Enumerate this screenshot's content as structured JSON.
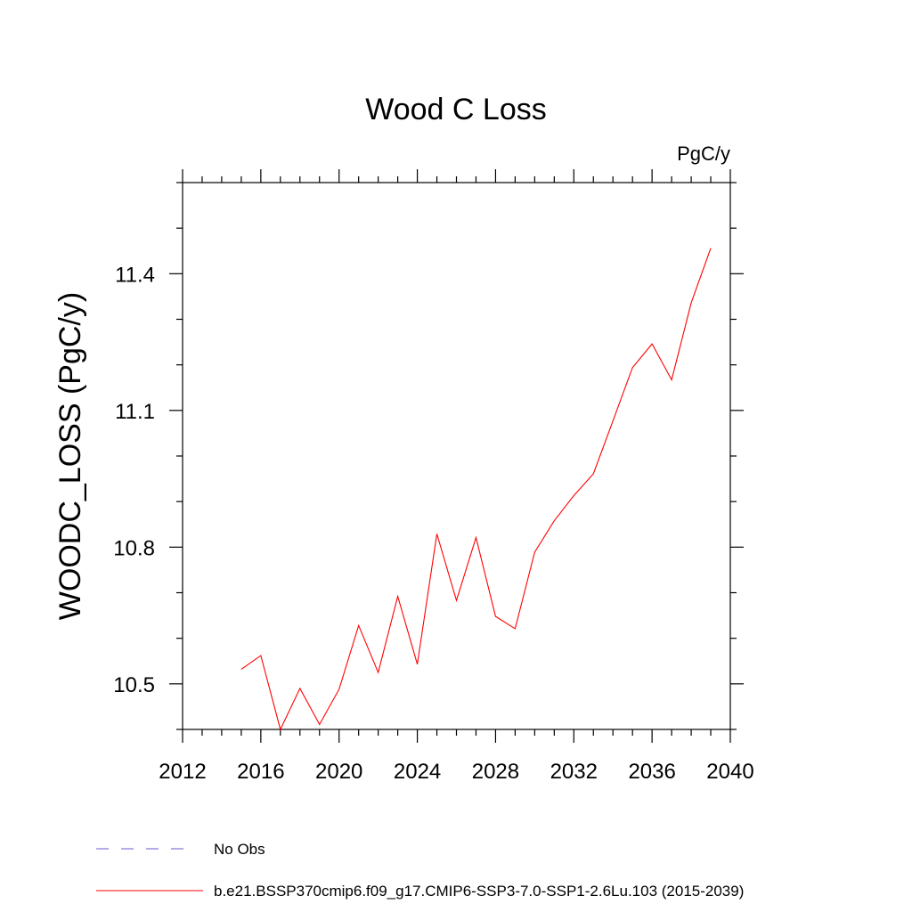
{
  "chart_data": {
    "type": "line",
    "title": "Wood C Loss",
    "units_label": "PgC/y",
    "ylabel": "WOODC_LOSS  (PgC/y)",
    "xlabel": "",
    "xlim": [
      2012,
      2040
    ],
    "ylim": [
      10.4,
      11.6
    ],
    "x_major_ticks": [
      2012,
      2016,
      2020,
      2024,
      2028,
      2032,
      2036,
      2040
    ],
    "x_tick_labels": [
      "2012",
      "2016",
      "2020",
      "2024",
      "2028",
      "2032",
      "2036",
      "2040"
    ],
    "y_major_ticks": [
      10.5,
      10.8,
      11.1,
      11.4
    ],
    "y_tick_labels": [
      "10.5",
      "10.8",
      "11.1",
      "11.4"
    ],
    "series": [
      {
        "name": "b.e21.BSSP370cmip6.f09_g17.CMIP6-SSP3-7.0-SSP1-2.6Lu.103 (2015-2039)",
        "color": "#ff0000",
        "x": [
          2015,
          2016,
          2017,
          2018,
          2019,
          2020,
          2021,
          2022,
          2023,
          2024,
          2025,
          2026,
          2027,
          2028,
          2029,
          2030,
          2031,
          2032,
          2033,
          2034,
          2035,
          2036,
          2037,
          2038,
          2039
        ],
        "y": [
          10.532,
          10.562,
          10.4,
          10.49,
          10.411,
          10.488,
          10.628,
          10.525,
          10.692,
          10.543,
          10.829,
          10.683,
          10.821,
          10.648,
          10.621,
          10.789,
          10.858,
          10.913,
          10.961,
          11.077,
          11.194,
          11.246,
          11.167,
          11.336,
          11.456
        ]
      }
    ],
    "legend": [
      {
        "label": "No Obs",
        "style": "dashed",
        "color": "#6a5acd"
      },
      {
        "label": "b.e21.BSSP370cmip6.f09_g17.CMIP6-SSP3-7.0-SSP1-2.6Lu.103 (2015-2039)",
        "style": "solid",
        "color": "#ff0000"
      }
    ]
  }
}
